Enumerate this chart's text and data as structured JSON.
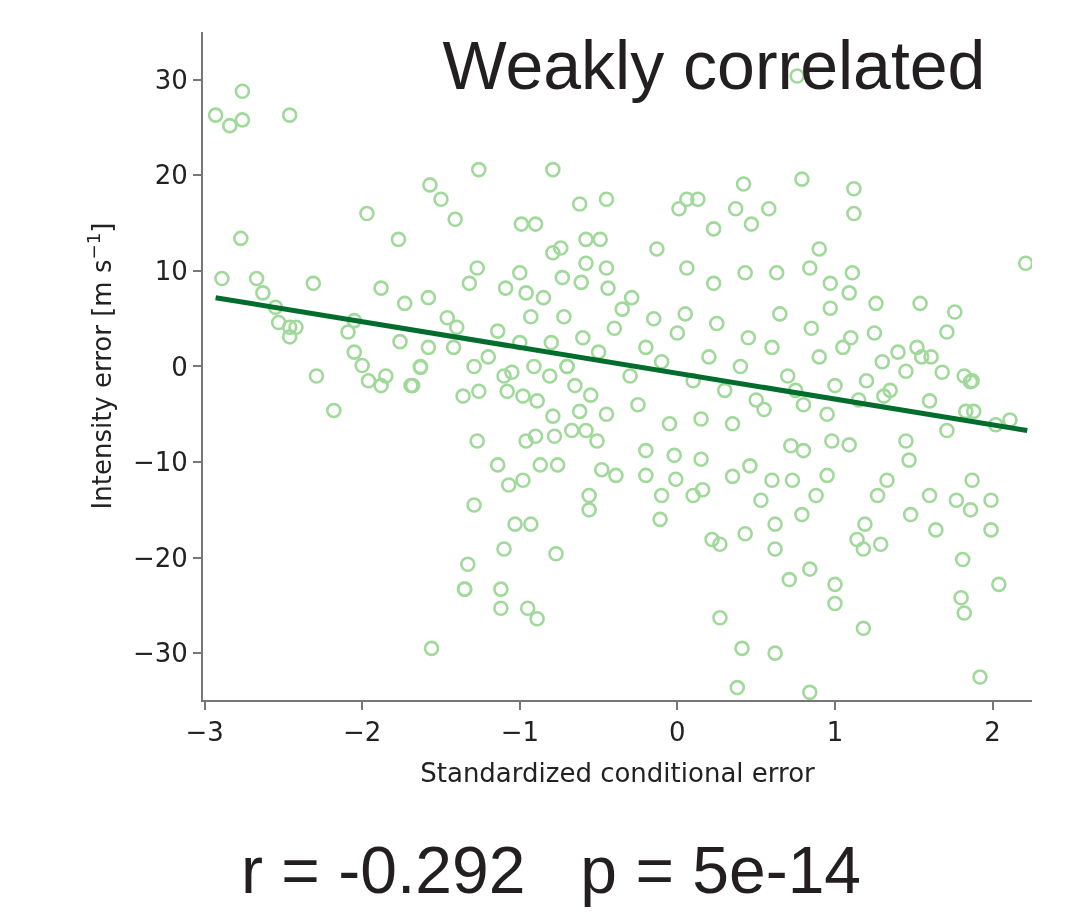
{
  "chart_data": {
    "type": "scatter",
    "title": "Weakly correlated",
    "xlabel": "Standardized conditional error",
    "ylabel": "Intensity error [m s$^{−1}$]",
    "xlim": [
      -3.01,
      2.25
    ],
    "xticks": [
      {
        "value": -3,
        "label": "−3"
      },
      {
        "value": -2,
        "label": "−2"
      },
      {
        "value": -1,
        "label": "−1"
      },
      0,
      1,
      2
    ],
    "ylim": [
      -34.9,
      35.0
    ],
    "yticks": [
      {
        "value": -30,
        "label": "−30"
      },
      {
        "value": -20,
        "label": "−20"
      },
      {
        "value": -10,
        "label": "−10"
      },
      0,
      10,
      20,
      30
    ],
    "series": [
      {
        "marker": "circle",
        "color": "#a1d99b",
        "x": [
          -2.93,
          -2.84,
          -2.76,
          -2.76,
          -2.46,
          -2.89,
          -2.77,
          -2.67,
          -2.63,
          -2.55,
          -2.53,
          -2.46,
          -2.42,
          -2.46,
          -2.31,
          -2.29,
          -2.18,
          -2.09,
          -2.05,
          -2.05,
          -2.0,
          -1.97,
          -1.96,
          -1.88,
          -1.88,
          -1.77,
          -1.73,
          -1.69,
          -1.57,
          -1.5,
          -1.41,
          -1.26,
          -1.56,
          -1.33,
          -1.35,
          -1.29,
          -1.27,
          -1.14,
          -1.07,
          -0.98,
          -0.87,
          -0.76,
          -1.03,
          -0.93,
          -1.1,
          -0.77,
          -1.35,
          -1.12,
          -1.12,
          -0.95,
          -0.89,
          -0.56,
          -0.56,
          -0.48,
          -0.78,
          -0.96,
          -0.9,
          -0.67,
          -0.58,
          -0.51,
          -0.79,
          -0.62,
          -0.98,
          -0.89,
          -1.08,
          -1.26,
          -1.36,
          -1.68,
          -1.85,
          -1.63,
          -0.79,
          -0.99,
          -0.9,
          -0.62,
          -0.45,
          -1.27,
          -1.32,
          -1.0,
          -0.73,
          -0.58,
          -0.79,
          -0.74,
          -0.58,
          -0.49,
          -1.58,
          -1.46,
          -1.09,
          -0.96,
          -0.85,
          -0.44,
          -0.45,
          -0.61,
          -1.4,
          -1.76,
          -1.58,
          -1.14,
          -0.93,
          -0.72,
          -1.05,
          -0.91,
          -0.81,
          -0.7,
          -1.42,
          -1.29,
          -1.63,
          0.76,
          0.79,
          1.12,
          1.12,
          0.42,
          0.13,
          0.06,
          0.01,
          0.37,
          0.58,
          0.47,
          0.23,
          0.9,
          -0.13,
          2.21,
          1.11,
          0.97,
          1.54,
          1.76,
          1.71,
          0.06,
          0.43,
          0.63,
          0.84,
          0.23,
          -0.29,
          1.09,
          1.26,
          0.97,
          1.4,
          1.52,
          1.61,
          1.87,
          0.38,
          0.84,
          1.92,
          0.41,
          0.62,
          0.27,
          1.18,
          1.8,
          1.82,
          2.04,
          1.0,
          1.0,
          0.71,
          0.84,
          1.81,
          0.62,
          1.18,
          1.29,
          0.27,
          0.22,
          0.43,
          0.62,
          1.99,
          1.64,
          -0.11,
          1.14,
          1.19,
          1.48,
          0.79,
          1.86,
          1.77,
          1.99,
          1.6,
          1.27,
          0.88,
          0.53,
          -0.1,
          1.87,
          1.33,
          0.95,
          0.73,
          0.6,
          -0.2,
          -0.39,
          2.02,
          2.11,
          1.71,
          1.45,
          1.47,
          1.83,
          1.88,
          1.6,
          1.31,
          1.86,
          1.82,
          1.68,
          0.98,
          1.09,
          0.72,
          0.8,
          0.46,
          0.35,
          0.15,
          -0.01,
          0.1,
          0.16,
          -0.2,
          -0.02,
          -0.6,
          -0.5,
          -0.4,
          -0.3,
          -0.2,
          -0.1,
          0.0,
          0.1,
          0.2,
          0.3,
          0.4,
          0.5,
          0.6,
          0.7,
          0.8,
          0.9,
          1.0,
          1.1,
          1.2,
          1.3,
          -0.55,
          -0.45,
          -0.35,
          -0.25,
          -0.15,
          -0.05,
          0.05,
          0.15,
          0.25,
          0.35,
          0.45,
          0.55,
          0.65,
          0.75,
          0.85,
          0.95,
          1.05,
          1.15,
          1.25,
          1.35,
          -0.7,
          -0.8,
          -0.65,
          1.45,
          1.55,
          -1.2,
          -1.1,
          -1.0
        ],
        "values": [
          26.3,
          25.2,
          25.8,
          28.8,
          26.3,
          9.2,
          13.4,
          9.2,
          7.7,
          6.2,
          4.6,
          4.1,
          4.1,
          3.1,
          8.7,
          -1.0,
          -4.6,
          3.6,
          4.8,
          1.5,
          0.1,
          16.0,
          -1.5,
          8.2,
          -2.0,
          13.3,
          6.6,
          -2.0,
          19.0,
          17.5,
          15.4,
          20.6,
          -29.5,
          -20.7,
          -23.3,
          -14.5,
          -7.8,
          -10.3,
          -12.4,
          -11.9,
          -10.3,
          -10.3,
          -16.5,
          -16.5,
          -19.1,
          -19.6,
          -23.3,
          -23.3,
          -25.3,
          -25.3,
          -26.4,
          -13.5,
          -15.0,
          -10.8,
          -7.3,
          -7.8,
          -7.3,
          -6.7,
          -6.7,
          -7.8,
          -5.2,
          -4.7,
          -3.1,
          -3.6,
          -2.6,
          -2.6,
          -3.1,
          -2.0,
          -1.0,
          -0.1,
          20.6,
          14.9,
          14.9,
          17.0,
          17.5,
          10.3,
          8.7,
          9.8,
          9.3,
          10.8,
          11.9,
          12.4,
          13.3,
          13.3,
          7.2,
          5.1,
          8.2,
          7.7,
          7.2,
          8.2,
          10.3,
          8.8,
          4.1,
          2.6,
          2.0,
          3.7,
          5.2,
          5.2,
          -0.6,
          0.0,
          -1.0,
          0.0,
          2.0,
          0.0,
          0.0,
          30.4,
          19.6,
          18.6,
          16.0,
          19.1,
          17.5,
          17.5,
          16.5,
          16.5,
          16.5,
          14.9,
          14.4,
          12.3,
          12.3,
          10.8,
          9.8,
          8.7,
          6.6,
          5.7,
          3.6,
          10.3,
          9.8,
          9.8,
          10.3,
          8.7,
          7.2,
          7.7,
          6.6,
          6.1,
          1.5,
          2.0,
          1.0,
          -1.5,
          -33.6,
          -34.1,
          -32.5,
          -29.5,
          -30.0,
          -26.3,
          -27.4,
          -24.2,
          -25.8,
          -22.8,
          -24.8,
          -22.8,
          -22.3,
          -21.2,
          -20.2,
          -19.1,
          -19.1,
          -18.6,
          -18.6,
          -18.1,
          -17.5,
          -16.5,
          -17.1,
          -17.1,
          -16.0,
          -18.1,
          -16.5,
          -15.5,
          -15.5,
          -15.0,
          -14.0,
          -14.0,
          -13.5,
          -13.5,
          -13.5,
          -14.0,
          -13.5,
          -11.9,
          -11.9,
          -11.4,
          -11.9,
          -11.9,
          -11.4,
          -11.4,
          -6.1,
          -5.6,
          -6.7,
          -7.8,
          -9.8,
          -4.7,
          -4.7,
          -3.6,
          -3.1,
          -1.6,
          -1.0,
          -0.6,
          -7.8,
          -8.2,
          -8.3,
          -8.8,
          -10.4,
          -11.5,
          -9.7,
          -11.8,
          -13.5,
          -12.9,
          -8.8,
          -9.3,
          3.0,
          1.5,
          4.0,
          -1.0,
          2.0,
          0.5,
          3.5,
          -1.5,
          1.0,
          -2.5,
          0.0,
          -3.5,
          2.0,
          -1.0,
          -4.0,
          1.0,
          -2.0,
          3.0,
          -1.5,
          0.5,
          -3.0,
          -5.0,
          6.0,
          -4.0,
          5.0,
          -6.0,
          5.5,
          -5.5,
          4.5,
          -6.0,
          3.0,
          -4.5,
          5.5,
          -2.5,
          4.0,
          -5.0,
          2.0,
          -3.5,
          3.5,
          -2.5,
          0.0,
          2.5,
          -2.0,
          -0.5,
          1.0,
          1.0,
          -1.0,
          2.5
        ]
      },
      {
        "type": "line",
        "color": "#006d2c",
        "x": [
          -2.93,
          2.22
        ],
        "values": [
          7.2,
          -6.7
        ]
      }
    ],
    "annotations": [
      "r = -0.292   p = 5e-14"
    ]
  }
}
